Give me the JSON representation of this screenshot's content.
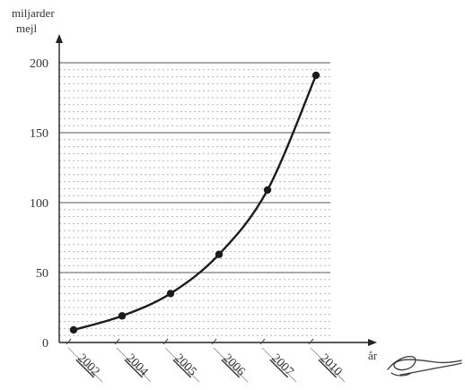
{
  "chart_data": {
    "type": "line",
    "ylabel_line1": "miljarder",
    "ylabel_line2": "mejl",
    "xlabel": "år",
    "categories": [
      "2002",
      "2004",
      "2005",
      "2006",
      "2007",
      "2010"
    ],
    "values": [
      9,
      19,
      35,
      63,
      109,
      191
    ],
    "y_ticks": [
      0,
      50,
      100,
      150,
      200
    ],
    "ylim": [
      0,
      200
    ],
    "grid": "solid major lines every 50, dotted minor lines every 5",
    "line_color": "#1c1c1c",
    "grid_color": "#8a8a8a"
  },
  "signature": {
    "kind": "handwritten scribble",
    "color": "#3a3a3a"
  }
}
